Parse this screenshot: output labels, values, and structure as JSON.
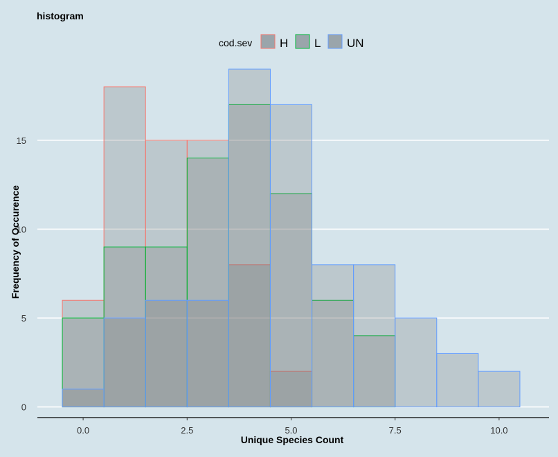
{
  "chart_data": {
    "type": "bar",
    "title": "histogram",
    "xlabel": "Unique Species Count",
    "ylabel": "Frequency of Occurence",
    "xlim": [
      -1.1,
      11.2
    ],
    "ylim": [
      -0.6,
      19.0
    ],
    "x_ticks": [
      0.0,
      2.5,
      5.0,
      7.5,
      10.0
    ],
    "x_tick_labels": [
      "0.0",
      "2.5",
      "5.0",
      "7.5",
      "10.0"
    ],
    "y_ticks": [
      0,
      5,
      10,
      15
    ],
    "y_tick_labels": [
      "0",
      "5",
      "10",
      "15"
    ],
    "grid": "horizontal",
    "legend": {
      "title": "cod.sev",
      "placement": "top",
      "fill": "#9aa5ab"
    },
    "bin_width": 1,
    "categories": [
      0,
      1,
      2,
      3,
      4,
      5,
      6,
      7,
      8,
      9,
      10
    ],
    "series": [
      {
        "name": "H",
        "color": "#f8766d",
        "values": [
          6,
          18,
          15,
          15,
          8,
          2,
          0,
          0,
          0,
          0,
          0
        ]
      },
      {
        "name": "L",
        "color": "#00ba38",
        "values": [
          5,
          9,
          9,
          14,
          17,
          12,
          6,
          4,
          0,
          0,
          0
        ]
      },
      {
        "name": "UN",
        "color": "#619cff",
        "values": [
          1,
          5,
          6,
          6,
          19,
          17,
          8,
          8,
          5,
          3,
          2
        ]
      }
    ]
  }
}
